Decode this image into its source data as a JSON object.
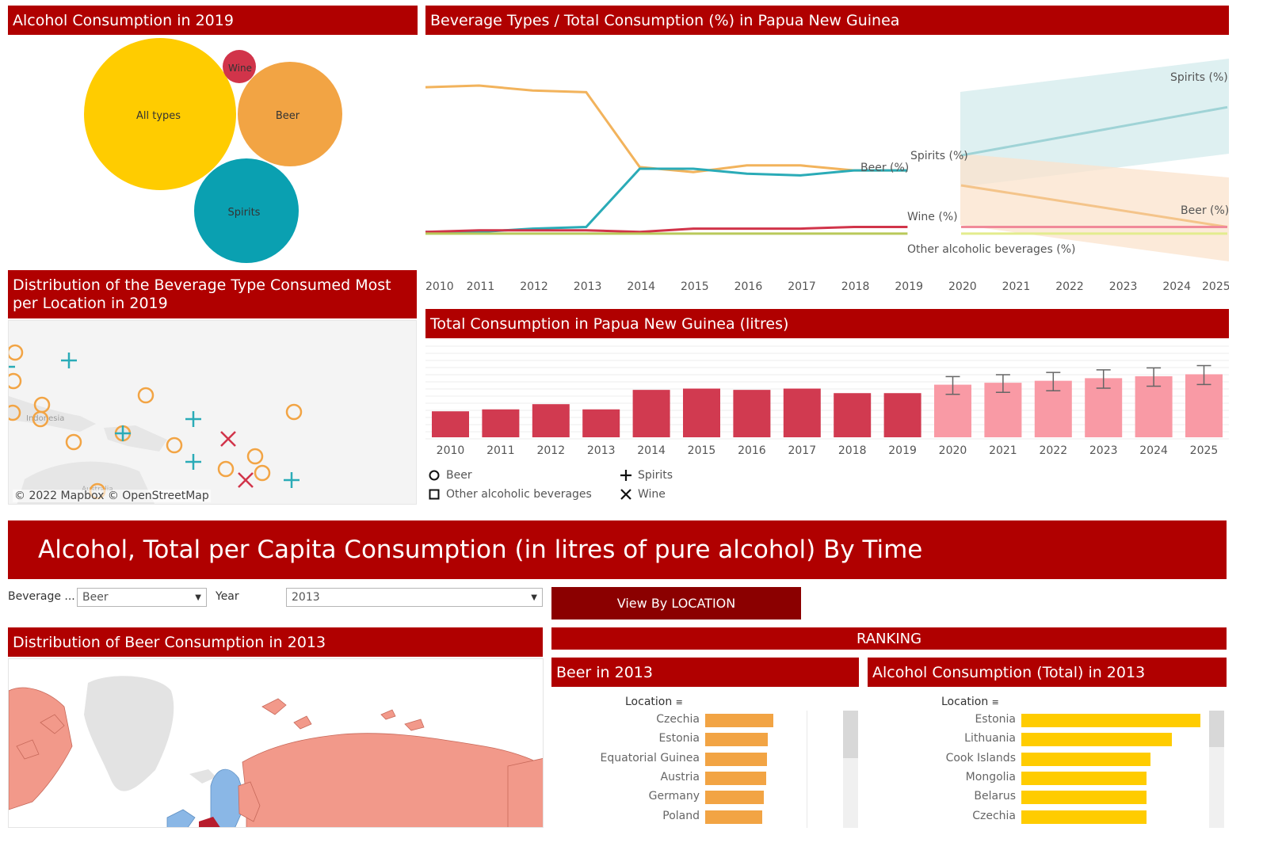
{
  "bubble_panel": {
    "title": "Alcohol Consumption in 2019",
    "bubbles": [
      {
        "label": "All types",
        "color": "#ffcc00"
      },
      {
        "label": "Wine",
        "color": "#d1344a"
      },
      {
        "label": "Beer",
        "color": "#f2a444"
      },
      {
        "label": "Spirits",
        "color": "#0aa0b1"
      }
    ]
  },
  "line_panel": {
    "title": "Beverage Types / Total Consumption (%) in Papua New Guinea",
    "labels": {
      "spirits": "Spirits (%)",
      "beer": "Beer (%)",
      "wine": "Wine (%)",
      "other": "Other alcoholic beverages (%)",
      "spirits_forecast": "Spirits (%)",
      "beer_forecast": "Beer (%)"
    },
    "years": [
      "2010",
      "2011",
      "2012",
      "2013",
      "2014",
      "2015",
      "2016",
      "2017",
      "2018",
      "2019",
      "2020",
      "2021",
      "2022",
      "2023",
      "2024",
      "2025"
    ]
  },
  "map_panel": {
    "title": "Distribution of the Beverage Type Consumed Most per Location in 2019",
    "attribution": "© 2022 Mapbox © OpenStreetMap",
    "place_label": "Indonesia",
    "place_label2": "Australia"
  },
  "bar_panel": {
    "title": "Total Consumption in Papua New Guinea (litres)",
    "years": [
      "2010",
      "2011",
      "2012",
      "2013",
      "2014",
      "2015",
      "2016",
      "2017",
      "2018",
      "2019",
      "2020",
      "2021",
      "2022",
      "2023",
      "2024",
      "2025"
    ]
  },
  "legend": {
    "beer": "Beer",
    "other": "Other alcoholic beverages",
    "spirits": "Spirits",
    "wine": "Wine"
  },
  "banner": {
    "title": "Alcohol, Total per Capita Consumption (in litres of pure alcohol) By Time"
  },
  "filters": {
    "beverage_label": "Beverage ...",
    "beverage_value": "Beer",
    "year_label": "Year",
    "year_value": "2013",
    "view_button": "View By LOCATION"
  },
  "world_map": {
    "title": "Distribution of Beer Consumption in 2013"
  },
  "ranking": {
    "title": "RANKING",
    "beer": {
      "title": "Beer in 2013",
      "column": "Location",
      "items": [
        {
          "name": "Czechia",
          "value": 0.97
        },
        {
          "name": "Estonia",
          "value": 0.89
        },
        {
          "name": "Equatorial Guinea",
          "value": 0.88
        },
        {
          "name": "Austria",
          "value": 0.87
        },
        {
          "name": "Germany",
          "value": 0.83
        },
        {
          "name": "Poland",
          "value": 0.81
        }
      ]
    },
    "total": {
      "title": "Alcohol Consumption (Total) in 2013",
      "column": "Location",
      "items": [
        {
          "name": "Estonia",
          "value": 1.0
        },
        {
          "name": "Lithuania",
          "value": 0.84
        },
        {
          "name": "Cook Islands",
          "value": 0.72
        },
        {
          "name": "Mongolia",
          "value": 0.7
        },
        {
          "name": "Belarus",
          "value": 0.7
        },
        {
          "name": "Czechia",
          "value": 0.7
        }
      ]
    }
  },
  "chart_data": [
    {
      "type": "line",
      "title": "Beverage Types / Total Consumption (%) in Papua New Guinea",
      "x": [
        2010,
        2011,
        2012,
        2013,
        2014,
        2015,
        2016,
        2017,
        2018,
        2019
      ],
      "series": [
        {
          "name": "Beer (%)",
          "color": "#f2b35c",
          "values": [
            89,
            90,
            87,
            86,
            41,
            38,
            42,
            42,
            39,
            39
          ]
        },
        {
          "name": "Spirits (%)",
          "color": "#2aabb7",
          "values": [
            2,
            2,
            4,
            5,
            40,
            40,
            37,
            36,
            39,
            39
          ]
        },
        {
          "name": "Wine (%)",
          "color": "#d1344a",
          "values": [
            2,
            3,
            3,
            3,
            2,
            4,
            4,
            4,
            5,
            5
          ]
        },
        {
          "name": "Other alcoholic beverages (%)",
          "color": "#b9c95a",
          "values": [
            1,
            1,
            1,
            1,
            1,
            1,
            1,
            1,
            1,
            1
          ]
        }
      ],
      "forecast": {
        "x": [
          2020,
          2025
        ],
        "spirits": [
          48,
          77
        ],
        "beer": [
          30,
          5
        ],
        "wine": [
          5,
          5
        ],
        "other": [
          1,
          1
        ]
      },
      "ylim": [
        0,
        100
      ]
    },
    {
      "type": "bar",
      "title": "Total Consumption in Papua New Guinea (litres)",
      "categories": [
        "2010",
        "2011",
        "2012",
        "2013",
        "2014",
        "2015",
        "2016",
        "2017",
        "2018",
        "2019",
        "2020",
        "2021",
        "2022",
        "2023",
        "2024",
        "2025"
      ],
      "values": [
        4.0,
        4.3,
        5.1,
        4.3,
        7.3,
        7.5,
        7.3,
        7.5,
        6.8,
        6.8,
        8.1,
        8.4,
        8.7,
        9.1,
        9.4,
        9.7
      ],
      "forecast_from": "2020",
      "error": [
        0,
        0,
        0,
        0,
        0,
        0,
        0,
        0,
        0,
        0,
        1.5,
        1.5,
        1.6,
        1.6,
        1.6,
        1.7
      ],
      "ylim": [
        0,
        12
      ]
    }
  ]
}
